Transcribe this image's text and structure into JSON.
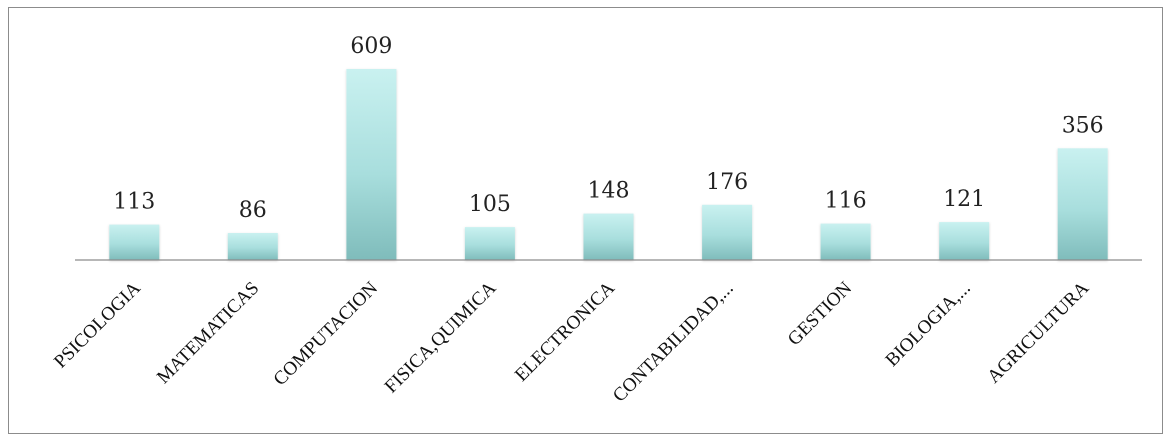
{
  "chart_data": {
    "type": "bar",
    "categories": [
      "PSICOLOGIA",
      "MATEMATICAS",
      "COMPUTACION",
      "FISICA,QUIMICA",
      "ELECTRONICA",
      "CONTABILIDAD,...",
      "GESTION",
      "BIOLOGIA,...",
      "AGRICULTURA"
    ],
    "values": [
      113,
      86,
      609,
      105,
      148,
      176,
      116,
      121,
      356
    ],
    "title": "",
    "xlabel": "",
    "ylabel": "",
    "ylim": [
      0,
      609
    ],
    "grid": false,
    "legend": "none",
    "data_labels": true,
    "colors": {
      "bar_top": "#c9f1f0",
      "bar_mid": "#a8dedd",
      "bar_bottom": "#7fbcbb",
      "axis": "#8c8c8c",
      "frame": "#8c8c8c"
    }
  }
}
